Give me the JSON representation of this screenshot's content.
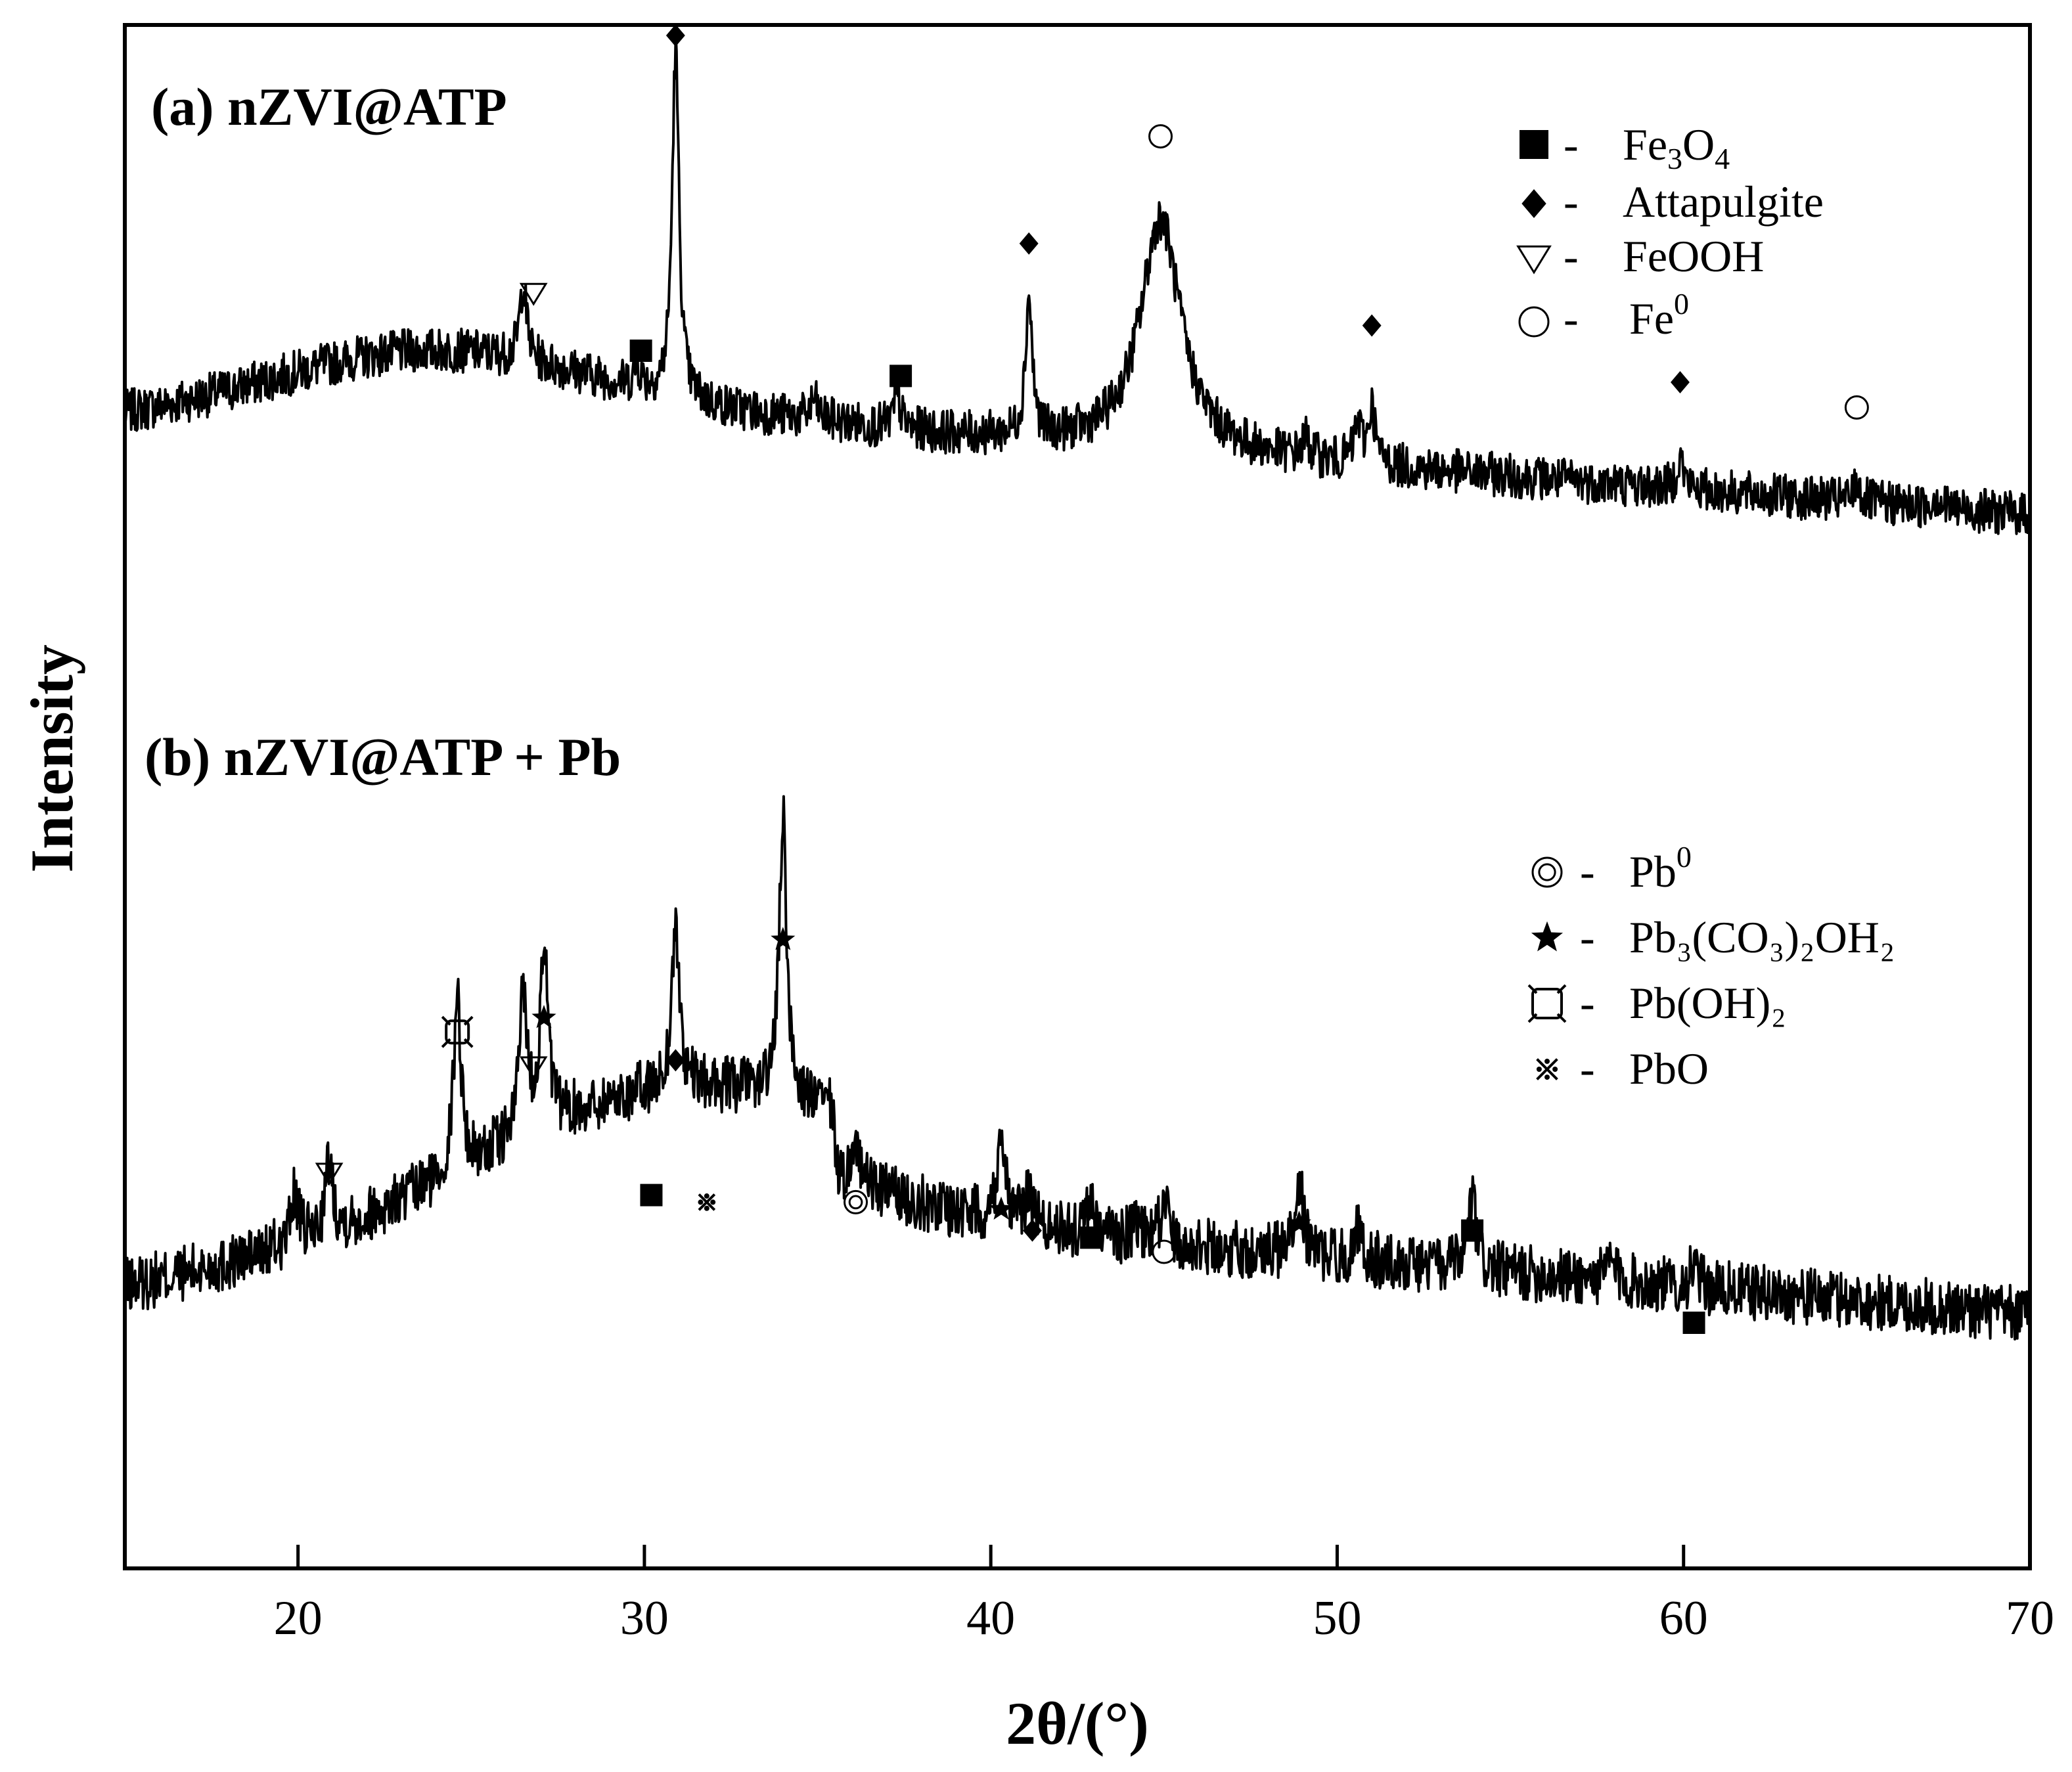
{
  "chart_data": {
    "type": "line",
    "xlabel": "2θ/(°)",
    "ylabel": "Intensity",
    "xlim": [
      15,
      70
    ],
    "xticks": [
      "20",
      "30",
      "40",
      "50",
      "60",
      "70"
    ],
    "panels": [
      {
        "id": "a",
        "title": "(a) nZVI@ATP",
        "baseline": 0.56,
        "peaks": [
          {
            "x": 26.5,
            "h": 0.12
          },
          {
            "x": 29.8,
            "h": 0.03
          },
          {
            "x": 30.9,
            "h": 0.55
          },
          {
            "x": 34.9,
            "h": 0.03
          },
          {
            "x": 37.3,
            "h": 0.05
          },
          {
            "x": 41.1,
            "h": 0.22
          },
          {
            "x": 44.9,
            "h": 0.37
          },
          {
            "x": 49.1,
            "h": 0.03
          },
          {
            "x": 50.6,
            "h": 0.06
          },
          {
            "x": 51.0,
            "h": 0.09
          },
          {
            "x": 59.9,
            "h": 0.05
          },
          {
            "x": 65.0,
            "h": 0.03
          },
          {
            "x": 67.3,
            "h": 0.02
          }
        ],
        "markers": [
          {
            "symbol": "triangle",
            "x": 26.8,
            "y": 0.69
          },
          {
            "symbol": "square",
            "x": 29.9,
            "y": 0.6
          },
          {
            "symbol": "diamond",
            "x": 30.9,
            "y": 1.1
          },
          {
            "symbol": "square",
            "x": 37.4,
            "y": 0.56
          },
          {
            "symbol": "diamond",
            "x": 41.1,
            "y": 0.77
          },
          {
            "symbol": "circle",
            "x": 44.9,
            "y": 0.94
          },
          {
            "symbol": "diamond",
            "x": 51.0,
            "y": 0.64
          },
          {
            "symbol": "diamond",
            "x": 59.9,
            "y": 0.55
          },
          {
            "symbol": "circle",
            "x": 65.0,
            "y": 0.51
          }
        ]
      },
      {
        "id": "b",
        "title": "(b) nZVI@ATP + Pb",
        "peaks": [
          {
            "x": 19.9,
            "h": 0.07
          },
          {
            "x": 20.9,
            "h": 0.1
          },
          {
            "x": 24.6,
            "h": 0.25
          },
          {
            "x": 26.5,
            "h": 0.21
          },
          {
            "x": 27.1,
            "h": 0.26
          },
          {
            "x": 30.9,
            "h": 0.23
          },
          {
            "x": 34.0,
            "h": 0.39
          },
          {
            "x": 36.1,
            "h": 0.06
          },
          {
            "x": 40.3,
            "h": 0.13
          },
          {
            "x": 41.1,
            "h": 0.05
          },
          {
            "x": 42.9,
            "h": 0.05
          },
          {
            "x": 44.2,
            "h": 0.03
          },
          {
            "x": 45.0,
            "h": 0.06
          },
          {
            "x": 48.9,
            "h": 0.11
          },
          {
            "x": 50.6,
            "h": 0.04
          },
          {
            "x": 53.9,
            "h": 0.1
          },
          {
            "x": 57.9,
            "h": 0.03
          },
          {
            "x": 60.3,
            "h": 0.03
          }
        ],
        "markers": [
          {
            "symbol": "triangle",
            "x": 20.9,
            "y": 0.41
          },
          {
            "symbol": "hollow-square",
            "x": 24.6,
            "y": 0.61
          },
          {
            "symbol": "triangle",
            "x": 26.8,
            "y": 0.56
          },
          {
            "symbol": "star",
            "x": 27.1,
            "y": 0.63
          },
          {
            "symbol": "square",
            "x": 30.2,
            "y": 0.38
          },
          {
            "symbol": "asterisk",
            "x": 31.8,
            "y": 0.37
          },
          {
            "symbol": "diamond",
            "x": 30.9,
            "y": 0.57
          },
          {
            "symbol": "star",
            "x": 34.0,
            "y": 0.74
          },
          {
            "symbol": "double-circle",
            "x": 36.1,
            "y": 0.37
          },
          {
            "symbol": "star",
            "x": 40.3,
            "y": 0.36
          },
          {
            "symbol": "diamond",
            "x": 41.2,
            "y": 0.33
          },
          {
            "symbol": "square",
            "x": 42.9,
            "y": 0.32
          },
          {
            "symbol": "circle",
            "x": 45.0,
            "y": 0.3
          },
          {
            "symbol": "star",
            "x": 48.9,
            "y": 0.34
          },
          {
            "symbol": "square",
            "x": 53.9,
            "y": 0.33
          },
          {
            "symbol": "square",
            "x": 60.3,
            "y": 0.2
          }
        ]
      }
    ],
    "legend_a": [
      {
        "symbol": "square",
        "label": "Fe",
        "sub1": "3",
        "mid": "O",
        "sub2": "4"
      },
      {
        "symbol": "diamond",
        "label": "Attapulgite"
      },
      {
        "symbol": "triangle",
        "label": "FeOOH"
      },
      {
        "symbol": "circle",
        "label": "Fe",
        "sup": "0"
      }
    ],
    "legend_b": [
      {
        "symbol": "double-circle",
        "label": "Pb",
        "sup": "0"
      },
      {
        "symbol": "star",
        "label": "Pb₃(CO₃)₂OH₂"
      },
      {
        "symbol": "hollow-square",
        "label": "Pb(OH)₂"
      },
      {
        "symbol": "asterisk",
        "label": "PbO"
      }
    ]
  },
  "colors": {
    "line": "#000000",
    "background": "#ffffff"
  }
}
